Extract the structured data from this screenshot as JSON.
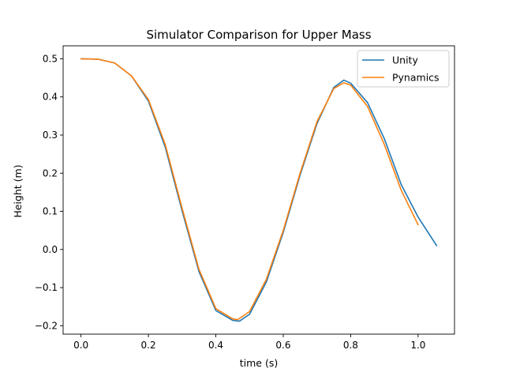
{
  "chart_data": {
    "type": "line",
    "title": "Simulator Comparison for Upper Mass",
    "xlabel": "time (s)",
    "ylabel": "Height (m)",
    "xlim": [
      -0.053,
      1.108
    ],
    "ylim": [
      -0.222,
      0.534
    ],
    "xticks": [
      0.0,
      0.2,
      0.4,
      0.6,
      0.8,
      1.0
    ],
    "xtick_labels": [
      "0.0",
      "0.2",
      "0.4",
      "0.6",
      "0.8",
      "1.0"
    ],
    "yticks": [
      -0.2,
      -0.1,
      0.0,
      0.1,
      0.2,
      0.3,
      0.4,
      0.5
    ],
    "ytick_labels": [
      "−0.2",
      "−0.1",
      "0.0",
      "0.1",
      "0.2",
      "0.3",
      "0.4",
      "0.5"
    ],
    "grid": false,
    "legend_position": "top-right",
    "series": [
      {
        "name": "Unity",
        "color": "#1f77b4",
        "x": [
          0.0,
          0.05,
          0.1,
          0.15,
          0.2,
          0.25,
          0.3,
          0.35,
          0.4,
          0.45,
          0.47,
          0.5,
          0.55,
          0.6,
          0.65,
          0.7,
          0.75,
          0.78,
          0.8,
          0.85,
          0.9,
          0.95,
          1.0,
          1.055
        ],
        "y": [
          0.5,
          0.499,
          0.489,
          0.455,
          0.389,
          0.268,
          0.101,
          -0.058,
          -0.16,
          -0.186,
          -0.188,
          -0.17,
          -0.085,
          0.045,
          0.195,
          0.33,
          0.425,
          0.444,
          0.436,
          0.385,
          0.29,
          0.17,
          0.085,
          0.01
        ]
      },
      {
        "name": "Pynamics",
        "color": "#ff7f0e",
        "x": [
          0.0,
          0.05,
          0.1,
          0.15,
          0.2,
          0.25,
          0.3,
          0.35,
          0.4,
          0.45,
          0.465,
          0.5,
          0.55,
          0.6,
          0.65,
          0.7,
          0.75,
          0.78,
          0.8,
          0.85,
          0.9,
          0.95,
          1.0
        ],
        "y": [
          0.5,
          0.499,
          0.489,
          0.455,
          0.393,
          0.275,
          0.108,
          -0.052,
          -0.155,
          -0.182,
          -0.184,
          -0.163,
          -0.078,
          0.05,
          0.2,
          0.335,
          0.422,
          0.437,
          0.431,
          0.375,
          0.275,
          0.155,
          0.065
        ]
      }
    ]
  }
}
